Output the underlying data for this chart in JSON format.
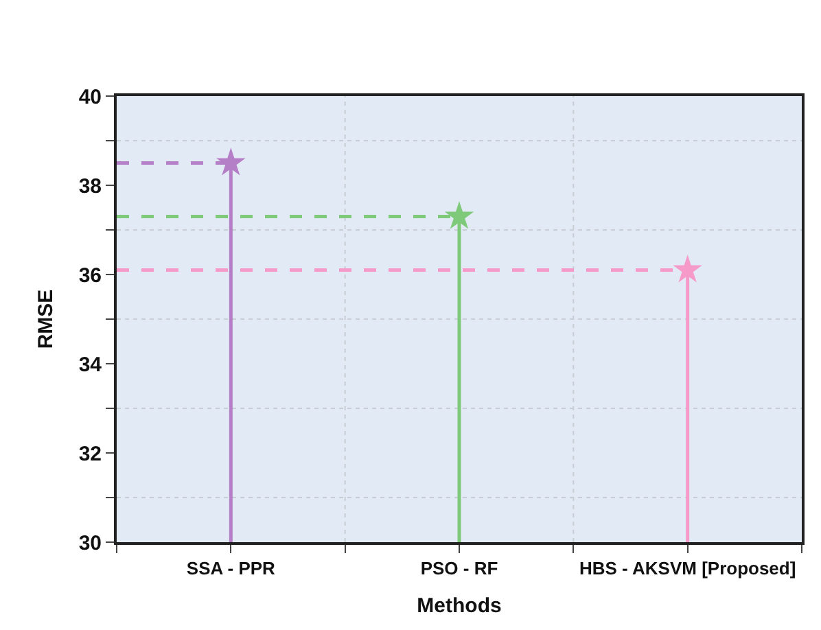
{
  "chart_data": {
    "type": "lollipop",
    "xlabel": "Methods",
    "ylabel": "RMSE",
    "categories": [
      "SSA - PPR",
      "PSO - RF",
      "HBS - AKSVM [Proposed]"
    ],
    "values": [
      38.5,
      37.3,
      36.1
    ],
    "colors": [
      "#b57fc7",
      "#7ec97a",
      "#f59ac9"
    ],
    "ylim": [
      30,
      40
    ],
    "yticks": [
      30,
      {
        "value": 31,
        "label": null
      },
      32,
      {
        "value": 33,
        "label": null
      },
      34,
      {
        "value": 35,
        "label": null
      },
      36,
      {
        "value": 37,
        "label": null
      },
      38,
      {
        "value": 39,
        "label": null
      },
      40
    ],
    "ref_lines": [
      {
        "axis": "y",
        "value": 38.5,
        "color": "#b57fc7",
        "line_style": "dashed"
      },
      {
        "axis": "y",
        "value": 37.3,
        "color": "#7ec97a",
        "line_style": "dashed"
      },
      {
        "axis": "y",
        "value": 36.1,
        "color": "#f59ac9",
        "line_style": "dashed"
      }
    ],
    "grid": true,
    "marker": "star"
  }
}
